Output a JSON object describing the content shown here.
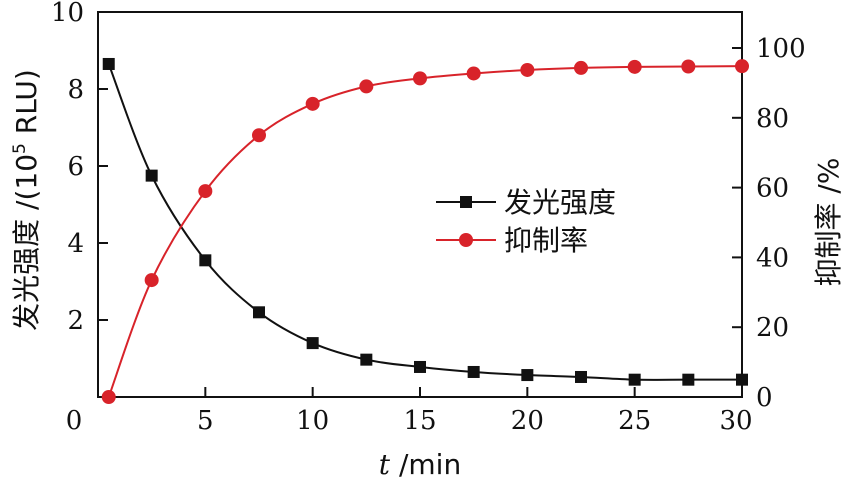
{
  "chart_data": {
    "type": "line",
    "xlabel": "t /min",
    "xlabel_var": "t",
    "xlabel_unit": " /min",
    "ylabel_left": "发光强度 /(10⁵ RLU)",
    "ylabel_left_main": "发光强度 /(10",
    "ylabel_left_exp": "5",
    "ylabel_left_end": " RLU)",
    "ylabel_right": "抑制率 /%",
    "xlim": [
      0,
      30
    ],
    "ylim_left": [
      0,
      10
    ],
    "ylim_right": [
      0,
      100
    ],
    "x_ticks": [
      0,
      5,
      10,
      15,
      20,
      25,
      30
    ],
    "y_left_ticks": [
      2,
      4,
      6,
      8,
      10
    ],
    "y_right_ticks": [
      0,
      20,
      40,
      60,
      80,
      100
    ],
    "x_zero_label": "0",
    "legend_position": "center-right",
    "series": [
      {
        "name": "发光强度",
        "axis": "left",
        "color": "#111111",
        "marker": "square",
        "x": [
          0.5,
          2.5,
          5,
          7.5,
          10,
          12.5,
          15,
          17.5,
          20,
          22.5,
          25,
          27.5,
          30
        ],
        "y": [
          8.65,
          5.75,
          3.55,
          2.2,
          1.4,
          0.97,
          0.78,
          0.65,
          0.57,
          0.52,
          0.45,
          0.45,
          0.45
        ]
      },
      {
        "name": "抑制率",
        "axis": "right",
        "color": "#d8232a",
        "marker": "circle",
        "x": [
          0.5,
          2.5,
          5,
          7.5,
          10,
          12.5,
          15,
          17.5,
          20,
          22.5,
          25,
          27.5,
          30
        ],
        "y": [
          0,
          33.5,
          59,
          75,
          84,
          89,
          91.3,
          92.7,
          93.7,
          94.3,
          94.6,
          94.7,
          94.8
        ]
      }
    ]
  }
}
